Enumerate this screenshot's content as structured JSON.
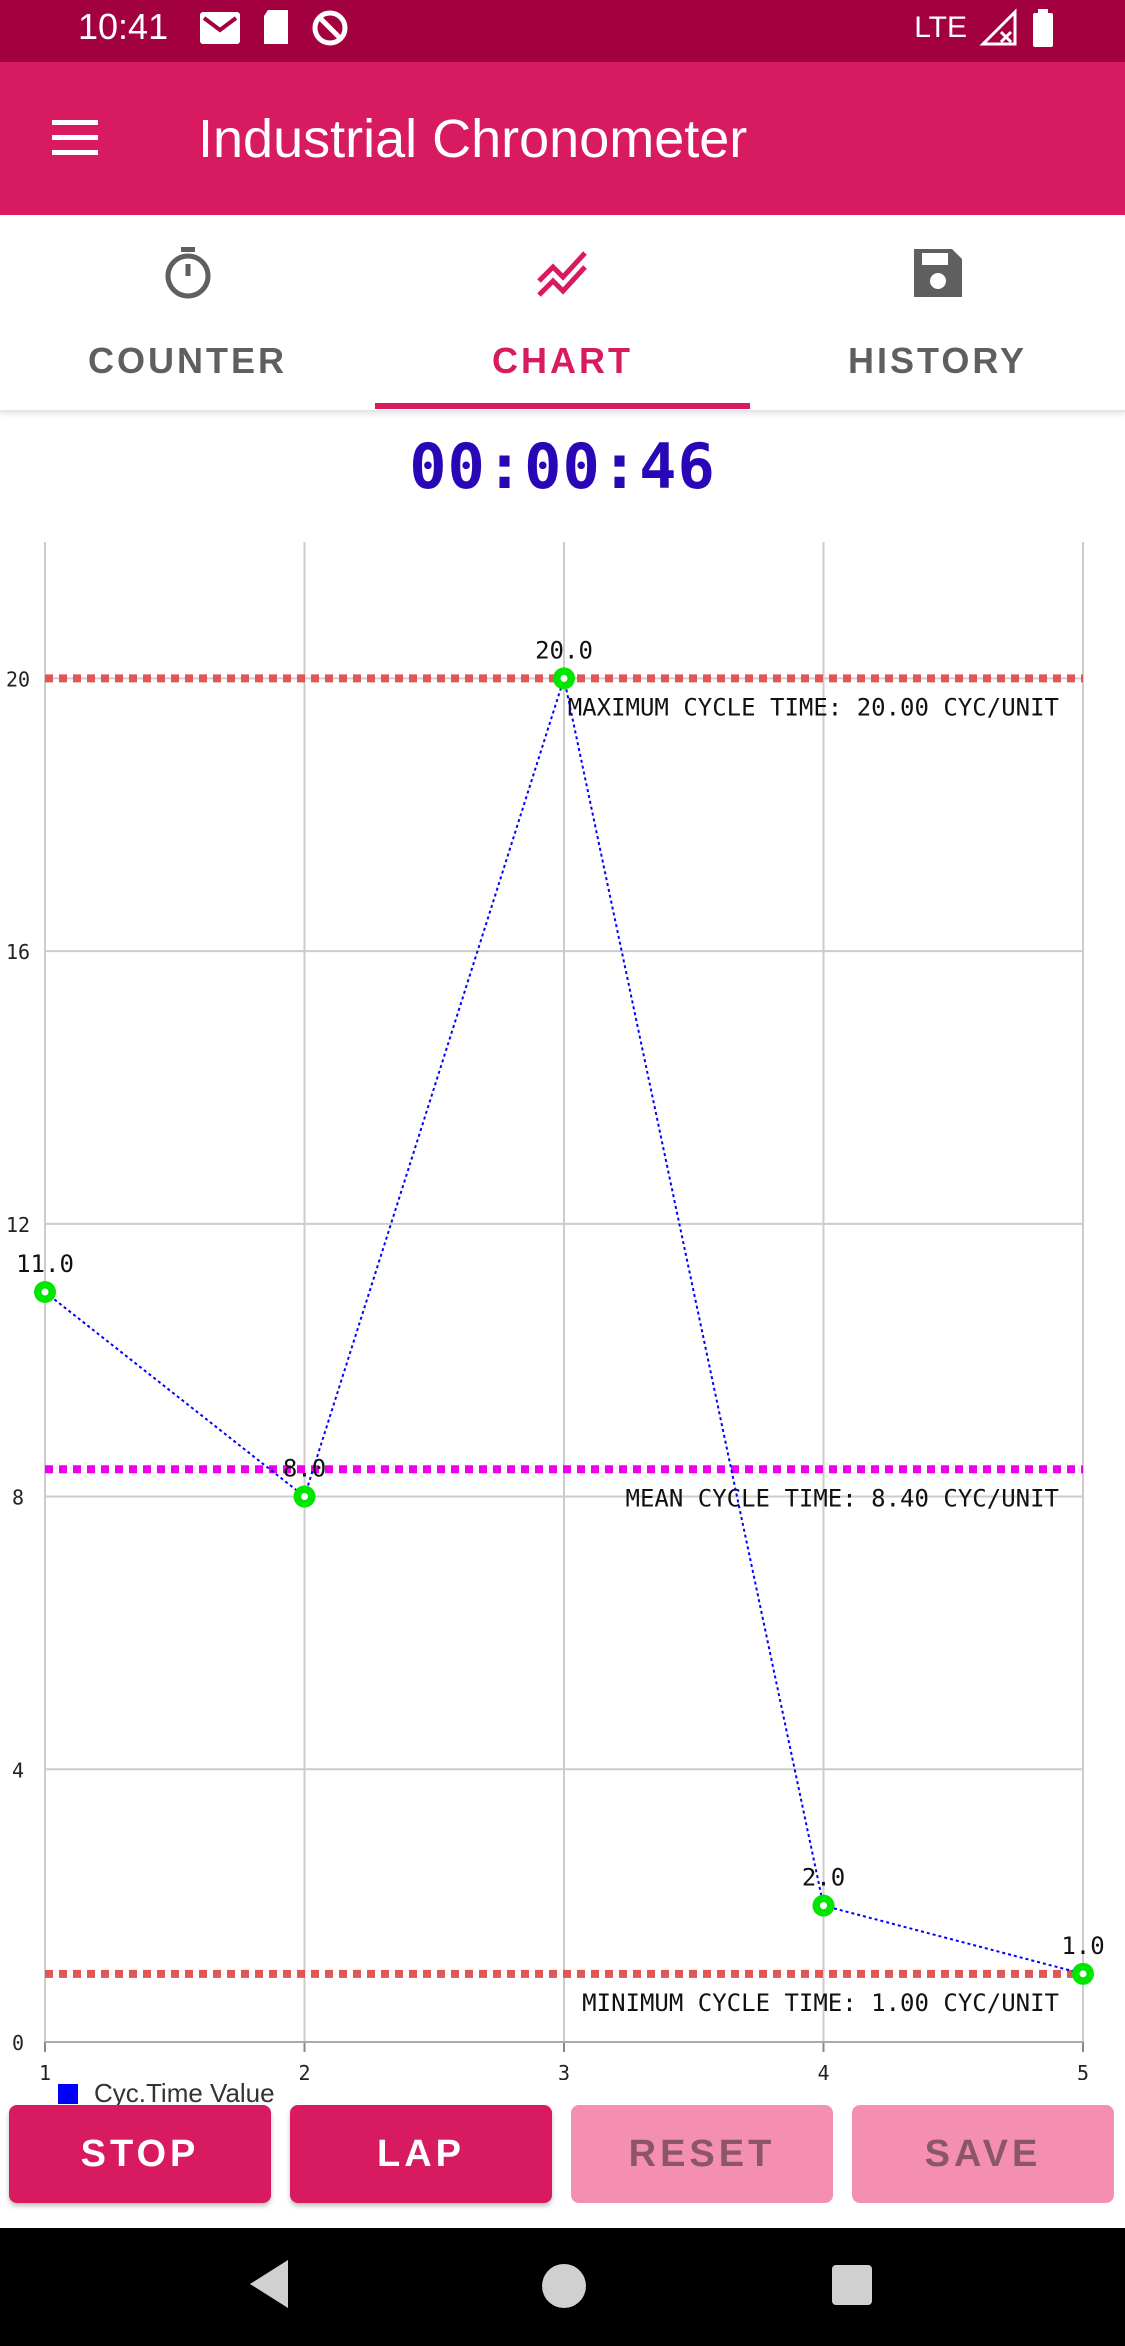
{
  "status_bar": {
    "time": "10:41",
    "network": "LTE"
  },
  "app": {
    "title": "Industrial Chronometer"
  },
  "tabs": [
    {
      "label": "COUNTER",
      "icon": "stopwatch-icon"
    },
    {
      "label": "CHART",
      "icon": "trend-chart-icon",
      "active": true
    },
    {
      "label": "HISTORY",
      "icon": "save-icon"
    }
  ],
  "timer": {
    "value": "00:00:46"
  },
  "chart_data": {
    "type": "line",
    "x": [
      1,
      2,
      3,
      4,
      5
    ],
    "xticks": [
      "1",
      "2",
      "3",
      "4",
      "5"
    ],
    "yticks": [
      "0",
      "4",
      "8",
      "12",
      "16",
      "20"
    ],
    "series": [
      {
        "name": "Cyc.Time Value",
        "values": [
          11.0,
          8.0,
          20.0,
          2.0,
          1.0
        ],
        "labels": [
          "11.0",
          "8.0",
          "20.0",
          "2.0",
          "1.0"
        ],
        "color": "#0000ff",
        "marker_color": "#00e600"
      }
    ],
    "reference_lines": [
      {
        "label": "MAXIMUM CYCLE TIME: 20.00 CYC/UNIT",
        "value": 20.0,
        "color": "#e05555"
      },
      {
        "label": "MEAN CYCLE TIME: 8.40 CYC/UNIT",
        "value": 8.4,
        "color": "#ee00ee"
      },
      {
        "label": "MINIMUM CYCLE TIME: 1.00 CYC/UNIT",
        "value": 1.0,
        "color": "#e05555"
      }
    ],
    "ylim": [
      0,
      22
    ],
    "xlim": [
      1,
      5
    ],
    "grid": true,
    "legend": "bottom-left"
  },
  "actions": {
    "stop": "STOP",
    "lap": "LAP",
    "reset": "RESET",
    "save": "SAVE"
  }
}
